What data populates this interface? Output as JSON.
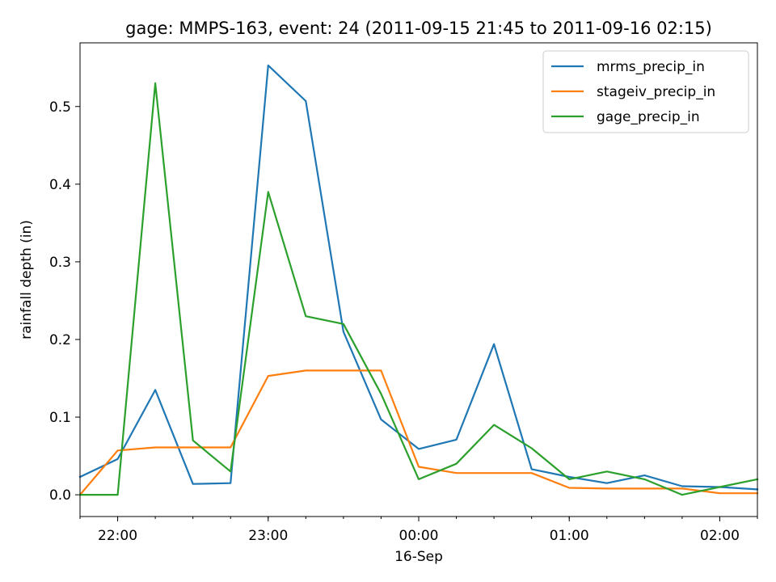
{
  "chart_data": {
    "type": "line",
    "title": "gage: MMPS-163, event: 24 (2011-09-15 21:45 to 2011-09-16 02:15)",
    "ylabel": "rainfall depth (in)",
    "xlabel": "",
    "x": [
      "21:45",
      "22:00",
      "22:15",
      "22:30",
      "22:45",
      "23:00",
      "23:15",
      "23:30",
      "23:45",
      "00:00",
      "00:15",
      "00:30",
      "00:45",
      "01:00",
      "01:15",
      "01:30",
      "01:45",
      "02:00",
      "02:15"
    ],
    "xlim": [
      "2011-09-15 21:45",
      "2011-09-16 02:15"
    ],
    "ylim": [
      -0.028,
      0.582
    ],
    "x_ticks": [
      {
        "time": "22:00",
        "label": "22:00"
      },
      {
        "time": "23:00",
        "label": "23:00"
      },
      {
        "time": "00:00",
        "label": "00:00"
      },
      {
        "time": "01:00",
        "label": "01:00"
      },
      {
        "time": "02:00",
        "label": "02:00"
      }
    ],
    "x_date_label": "16-Sep",
    "y_ticks": [
      0.0,
      0.1,
      0.2,
      0.3,
      0.4,
      0.5
    ],
    "y_tick_labels": [
      "0.0",
      "0.1",
      "0.2",
      "0.3",
      "0.4",
      "0.5"
    ],
    "grid": false,
    "legend_position": "top-right",
    "series": [
      {
        "name": "mrms_precip_in",
        "color": "#1f77b4",
        "values": [
          0.023,
          0.046,
          0.135,
          0.014,
          0.015,
          0.553,
          0.507,
          0.21,
          0.097,
          0.059,
          0.071,
          0.194,
          0.033,
          0.023,
          0.015,
          0.025,
          0.011,
          0.01,
          0.007
        ]
      },
      {
        "name": "stageiv_precip_in",
        "color": "#ff7f0e",
        "values": [
          0.0,
          0.057,
          0.061,
          0.061,
          0.061,
          0.153,
          0.16,
          0.16,
          0.16,
          0.036,
          0.028,
          0.028,
          0.028,
          0.009,
          0.008,
          0.008,
          0.008,
          0.002,
          0.002
        ]
      },
      {
        "name": "gage_precip_in",
        "color": "#2ca02c",
        "values": [
          0.0,
          0.0,
          0.53,
          0.07,
          0.03,
          0.39,
          0.23,
          0.22,
          0.13,
          0.02,
          0.04,
          0.09,
          0.06,
          0.02,
          0.03,
          0.02,
          0.0,
          0.01,
          0.02
        ]
      }
    ]
  }
}
